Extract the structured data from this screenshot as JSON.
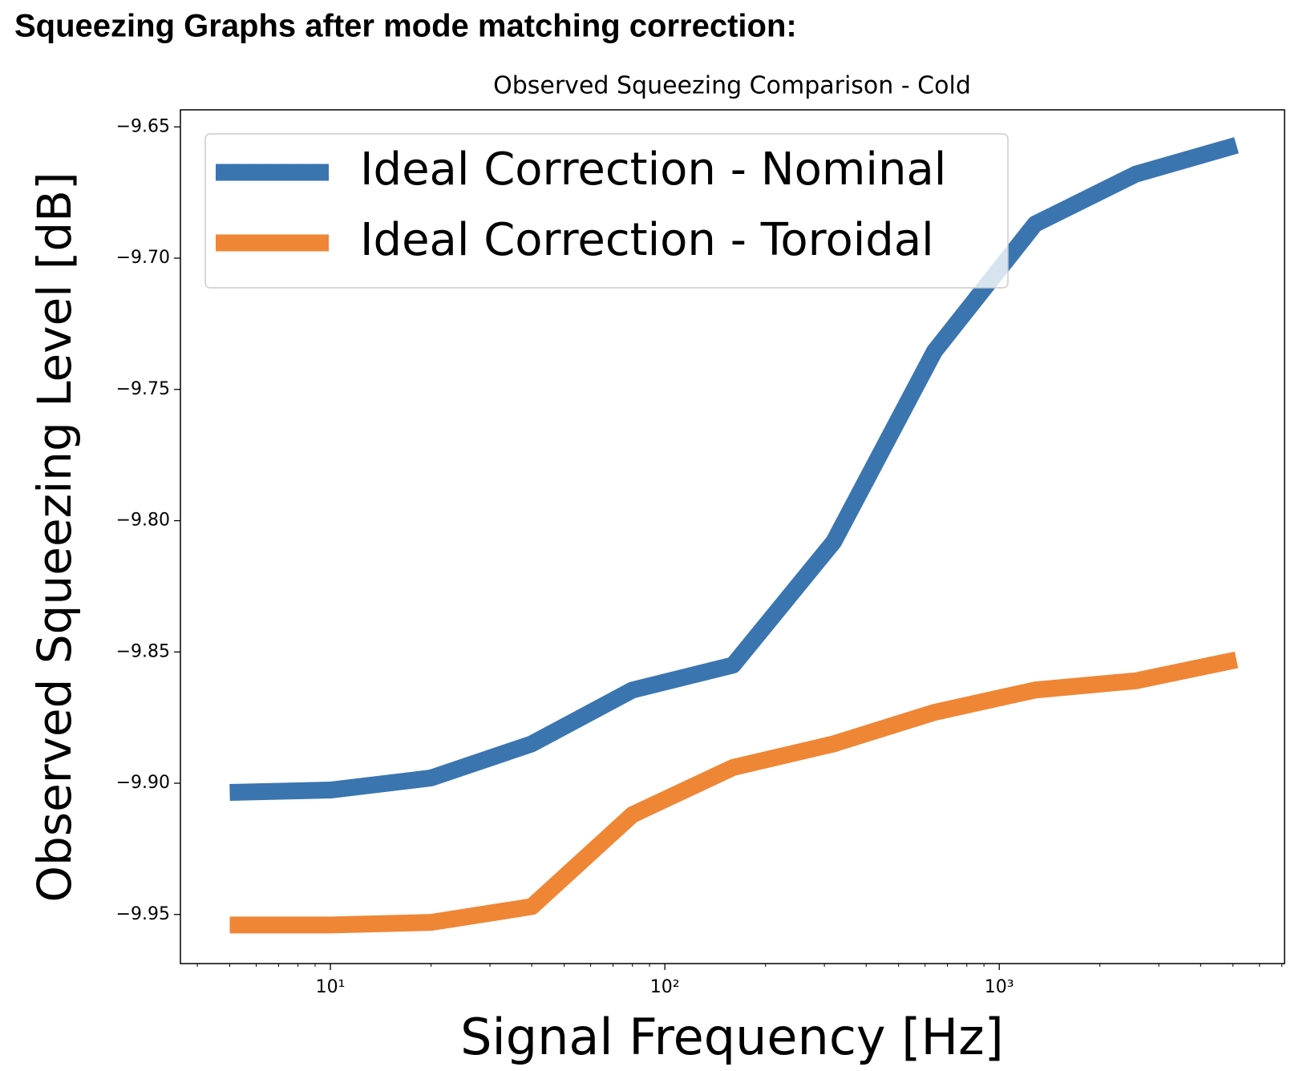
{
  "header": "Squeezing Graphs after mode matching correction:",
  "chart_data": {
    "type": "line",
    "title": "Observed Squeezing Comparison - Cold",
    "x_label": "Signal Frequency [Hz]",
    "y_label": "Observed Squeezing Level [dB]",
    "x_scale": "log",
    "x": [
      5,
      10,
      20,
      40,
      80,
      160,
      320,
      640,
      1280,
      2560,
      5120
    ],
    "series": [
      {
        "name": "Ideal Correction - Nominal",
        "color": "#3a75b0",
        "values": [
          -9.9035,
          -9.9026,
          -9.898,
          -9.885,
          -9.8645,
          -9.855,
          -9.808,
          -9.7355,
          -9.687,
          -9.668,
          -9.657
        ]
      },
      {
        "name": "Ideal Correction - Toroidal",
        "color": "#ef8636",
        "values": [
          -9.954,
          -9.954,
          -9.953,
          -9.947,
          -9.912,
          -9.894,
          -9.885,
          -9.873,
          -9.8645,
          -9.861,
          -9.853
        ]
      }
    ],
    "xlim": [
      3.56,
      7130
    ],
    "ylim": [
      -9.9687,
      -9.6435
    ],
    "xticks": [
      {
        "value": 10,
        "label": "10¹"
      },
      {
        "value": 100,
        "label": "10²"
      },
      {
        "value": 1000,
        "label": "10³"
      }
    ],
    "xminorticks": [
      4,
      5,
      6,
      7,
      8,
      9,
      20,
      30,
      40,
      50,
      60,
      70,
      80,
      90,
      200,
      300,
      400,
      500,
      600,
      700,
      800,
      900,
      2000,
      3000,
      4000,
      5000,
      6000,
      7000
    ],
    "yticks": [
      {
        "value": -9.95,
        "label": "−9.95"
      },
      {
        "value": -9.9,
        "label": "−9.90"
      },
      {
        "value": -9.85,
        "label": "−9.85"
      },
      {
        "value": -9.8,
        "label": "−9.80"
      },
      {
        "value": -9.75,
        "label": "−9.75"
      },
      {
        "value": -9.7,
        "label": "−9.70"
      },
      {
        "value": -9.65,
        "label": "−9.65"
      }
    ],
    "legend": "upper left"
  }
}
